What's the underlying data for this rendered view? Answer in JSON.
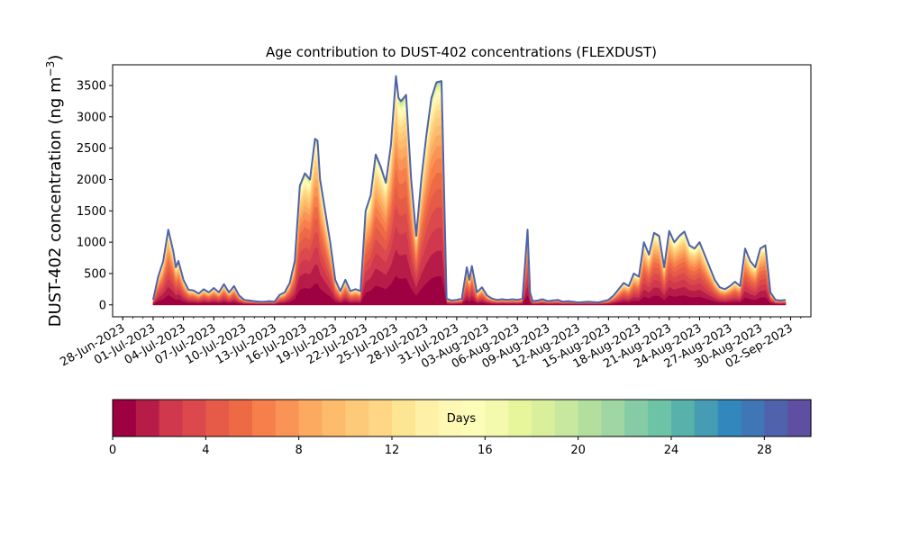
{
  "chart_data": {
    "type": "area",
    "title": "Age contribution to DUST-402 concentrations (FLEXDUST)",
    "ylabel": "DUST-402 concentration (ng m",
    "ylabel_unit_sup": "−3",
    "ylabel_close": ")",
    "xlabel": "",
    "ylim": [
      -190,
      3830
    ],
    "x_range": [
      "2023-06-27",
      "2023-09-04"
    ],
    "yticks": [
      0,
      500,
      1000,
      1500,
      2000,
      2500,
      3000,
      3500
    ],
    "yticklabels": [
      "0",
      "500",
      "1000",
      "1500",
      "2000",
      "2500",
      "3000",
      "3500"
    ],
    "xticks": [
      "2023-06-28",
      "2023-07-01",
      "2023-07-04",
      "2023-07-07",
      "2023-07-10",
      "2023-07-13",
      "2023-07-16",
      "2023-07-19",
      "2023-07-22",
      "2023-07-25",
      "2023-07-28",
      "2023-07-31",
      "2023-08-03",
      "2023-08-06",
      "2023-08-09",
      "2023-08-12",
      "2023-08-15",
      "2023-08-18",
      "2023-08-21",
      "2023-08-24",
      "2023-08-27",
      "2023-08-30",
      "2023-09-02"
    ],
    "xticklabels": [
      "28-Jun-2023",
      "01-Jul-2023",
      "04-Jul-2023",
      "07-Jul-2023",
      "10-Jul-2023",
      "13-Jul-2023",
      "16-Jul-2023",
      "19-Jul-2023",
      "22-Jul-2023",
      "25-Jul-2023",
      "28-Jul-2023",
      "31-Jul-2023",
      "03-Aug-2023",
      "06-Aug-2023",
      "09-Aug-2023",
      "12-Aug-2023",
      "15-Aug-2023",
      "18-Aug-2023",
      "21-Aug-2023",
      "24-Aug-2023",
      "27-Aug-2023",
      "30-Aug-2023",
      "02-Sep-2023"
    ],
    "total_concentration": [
      [
        "2023-07-01T00",
        80
      ],
      [
        "2023-07-01T12",
        450
      ],
      [
        "2023-07-02T00",
        700
      ],
      [
        "2023-07-02T12",
        1200
      ],
      [
        "2023-07-03T00",
        850
      ],
      [
        "2023-07-03T06",
        600
      ],
      [
        "2023-07-03T12",
        700
      ],
      [
        "2023-07-04T00",
        400
      ],
      [
        "2023-07-04T12",
        240
      ],
      [
        "2023-07-05T00",
        230
      ],
      [
        "2023-07-05T12",
        180
      ],
      [
        "2023-07-06T00",
        250
      ],
      [
        "2023-07-06T12",
        200
      ],
      [
        "2023-07-07T00",
        270
      ],
      [
        "2023-07-07T12",
        200
      ],
      [
        "2023-07-08T00",
        330
      ],
      [
        "2023-07-08T12",
        200
      ],
      [
        "2023-07-09T00",
        300
      ],
      [
        "2023-07-09T12",
        150
      ],
      [
        "2023-07-10T00",
        80
      ],
      [
        "2023-07-10T12",
        70
      ],
      [
        "2023-07-11T00",
        60
      ],
      [
        "2023-07-11T12",
        50
      ],
      [
        "2023-07-12T00",
        50
      ],
      [
        "2023-07-12T12",
        60
      ],
      [
        "2023-07-13T00",
        50
      ],
      [
        "2023-07-13T12",
        160
      ],
      [
        "2023-07-14T00",
        200
      ],
      [
        "2023-07-14T12",
        350
      ],
      [
        "2023-07-15T00",
        700
      ],
      [
        "2023-07-15T12",
        1900
      ],
      [
        "2023-07-16T00",
        2100
      ],
      [
        "2023-07-16T12",
        2000
      ],
      [
        "2023-07-17T00",
        2650
      ],
      [
        "2023-07-17T06",
        2620
      ],
      [
        "2023-07-17T12",
        2000
      ],
      [
        "2023-07-18T00",
        1500
      ],
      [
        "2023-07-18T12",
        1000
      ],
      [
        "2023-07-19T00",
        400
      ],
      [
        "2023-07-19T12",
        220
      ],
      [
        "2023-07-20T00",
        400
      ],
      [
        "2023-07-20T12",
        220
      ],
      [
        "2023-07-21T00",
        250
      ],
      [
        "2023-07-21T12",
        220
      ],
      [
        "2023-07-22T00",
        1500
      ],
      [
        "2023-07-22T12",
        1750
      ],
      [
        "2023-07-23T00",
        2400
      ],
      [
        "2023-07-23T12",
        2200
      ],
      [
        "2023-07-24T00",
        1950
      ],
      [
        "2023-07-24T12",
        2550
      ],
      [
        "2023-07-25T00",
        3650
      ],
      [
        "2023-07-25T06",
        3300
      ],
      [
        "2023-07-25T12",
        3250
      ],
      [
        "2023-07-26T00",
        3350
      ],
      [
        "2023-07-26T12",
        2000
      ],
      [
        "2023-07-27T00",
        1100
      ],
      [
        "2023-07-27T12",
        2000
      ],
      [
        "2023-07-28T00",
        2700
      ],
      [
        "2023-07-28T12",
        3300
      ],
      [
        "2023-07-29T00",
        3550
      ],
      [
        "2023-07-29T12",
        3570
      ],
      [
        "2023-07-30T00",
        100
      ],
      [
        "2023-07-30T12",
        70
      ],
      [
        "2023-07-31T00",
        80
      ],
      [
        "2023-07-31T12",
        100
      ],
      [
        "2023-08-01T00",
        600
      ],
      [
        "2023-08-01T06",
        400
      ],
      [
        "2023-08-01T12",
        620
      ],
      [
        "2023-08-02T00",
        200
      ],
      [
        "2023-08-02T12",
        280
      ],
      [
        "2023-08-03T00",
        150
      ],
      [
        "2023-08-03T12",
        100
      ],
      [
        "2023-08-04T00",
        80
      ],
      [
        "2023-08-04T12",
        90
      ],
      [
        "2023-08-05T00",
        80
      ],
      [
        "2023-08-05T12",
        90
      ],
      [
        "2023-08-06T00",
        80
      ],
      [
        "2023-08-06T12",
        100
      ],
      [
        "2023-08-07T00",
        1200
      ],
      [
        "2023-08-07T06",
        200
      ],
      [
        "2023-08-07T12",
        60
      ],
      [
        "2023-08-08T00",
        70
      ],
      [
        "2023-08-08T12",
        90
      ],
      [
        "2023-08-09T00",
        60
      ],
      [
        "2023-08-09T12",
        70
      ],
      [
        "2023-08-10T00",
        80
      ],
      [
        "2023-08-10T12",
        50
      ],
      [
        "2023-08-11T00",
        60
      ],
      [
        "2023-08-11T12",
        50
      ],
      [
        "2023-08-12T00",
        40
      ],
      [
        "2023-08-13T00",
        50
      ],
      [
        "2023-08-14T00",
        40
      ],
      [
        "2023-08-15T00",
        80
      ],
      [
        "2023-08-15T12",
        150
      ],
      [
        "2023-08-16T00",
        250
      ],
      [
        "2023-08-16T12",
        350
      ],
      [
        "2023-08-17T00",
        300
      ],
      [
        "2023-08-17T12",
        500
      ],
      [
        "2023-08-18T00",
        450
      ],
      [
        "2023-08-18T12",
        1000
      ],
      [
        "2023-08-19T00",
        800
      ],
      [
        "2023-08-19T12",
        1150
      ],
      [
        "2023-08-20T00",
        1100
      ],
      [
        "2023-08-20T12",
        600
      ],
      [
        "2023-08-21T00",
        1180
      ],
      [
        "2023-08-21T12",
        1000
      ],
      [
        "2023-08-22T00",
        1100
      ],
      [
        "2023-08-22T12",
        1170
      ],
      [
        "2023-08-23T00",
        950
      ],
      [
        "2023-08-23T12",
        900
      ],
      [
        "2023-08-24T00",
        1000
      ],
      [
        "2023-08-24T12",
        800
      ],
      [
        "2023-08-25T00",
        600
      ],
      [
        "2023-08-25T12",
        400
      ],
      [
        "2023-08-26T00",
        280
      ],
      [
        "2023-08-26T12",
        250
      ],
      [
        "2023-08-27T00",
        300
      ],
      [
        "2023-08-27T12",
        370
      ],
      [
        "2023-08-28T00",
        300
      ],
      [
        "2023-08-28T12",
        900
      ],
      [
        "2023-08-29T00",
        700
      ],
      [
        "2023-08-29T12",
        600
      ],
      [
        "2023-08-30T00",
        900
      ],
      [
        "2023-08-30T12",
        950
      ],
      [
        "2023-08-31T00",
        200
      ],
      [
        "2023-08-31T12",
        80
      ],
      [
        "2023-09-01T00",
        70
      ],
      [
        "2023-09-01T12",
        80
      ]
    ],
    "age_layers": {
      "unit": "Days",
      "min": 0,
      "max": 30,
      "step": 1,
      "colormap": "Spectral",
      "ticks": [
        0,
        4,
        8,
        12,
        16,
        20,
        24,
        28
      ],
      "ticklabels": [
        "0",
        "4",
        "8",
        "12",
        "16",
        "20",
        "24",
        "28"
      ],
      "colors": [
        "#9e0142",
        "#b71c48",
        "#cf384d",
        "#dc494c",
        "#e65b48",
        "#ee6a45",
        "#f67f4b",
        "#f99456",
        "#fcaa5f",
        "#fdbb6c",
        "#fdca79",
        "#fed686",
        "#fee593",
        "#fef0a7",
        "#fff8b4",
        "#fbfdb9",
        "#f3faad",
        "#e7f59b",
        "#d9ef9b",
        "#c7e89e",
        "#b2df9d",
        "#9fd6a3",
        "#84cba6",
        "#6dc3a5",
        "#58b2ab",
        "#469cb2",
        "#3288bd",
        "#3f76b6",
        "#4f62ab",
        "#5e4fa2"
      ]
    },
    "line_color": "#4f62ab",
    "grid": false,
    "legend": "none",
    "colorbar_position": "bottom"
  }
}
